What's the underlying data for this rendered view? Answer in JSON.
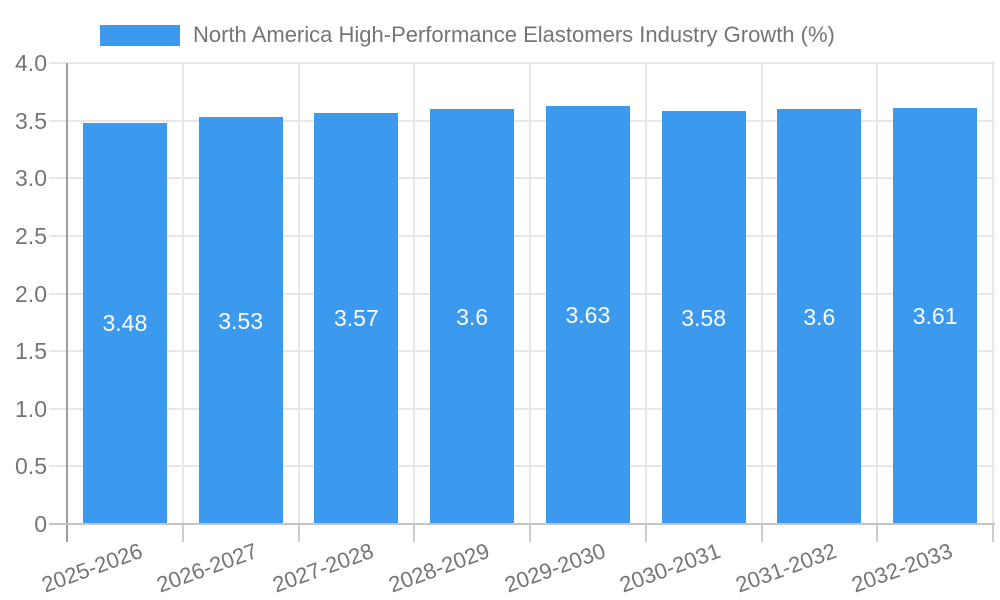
{
  "chart_data": {
    "type": "bar",
    "title": "North America High-Performance Elastomers Industry Growth (%)",
    "categories": [
      "2025-2026",
      "2026-2027",
      "2027-2028",
      "2028-2029",
      "2029-2030",
      "2030-2031",
      "2031-2032",
      "2032-2033"
    ],
    "values": [
      3.48,
      3.53,
      3.57,
      3.6,
      3.63,
      3.58,
      3.6,
      3.61
    ],
    "value_labels": [
      "3.48",
      "3.53",
      "3.57",
      "3.6",
      "3.63",
      "3.58",
      "3.6",
      "3.61"
    ],
    "xlabel": "",
    "ylabel": "",
    "ylim": [
      0,
      4
    ],
    "ytick_step": 0.5,
    "ytick_labels": [
      "0",
      "0.5",
      "1.0",
      "1.5",
      "2.0",
      "2.5",
      "3.0",
      "3.5",
      "4.0"
    ],
    "grid": true,
    "legend_position": "top",
    "legend_entries": [
      "North America High-Performance Elastomers Industry Growth (%)"
    ],
    "colors": {
      "bar": "#3B99EE",
      "value_label": "#FFFFFF",
      "axis_text": "#757575",
      "title_text": "#757575",
      "gridline": "#E7E7E7",
      "baseline": "#C4C4C4",
      "axis_line": "#9E9E9E",
      "tick": "#CCCCCC",
      "background": "#FFFFFF"
    }
  }
}
